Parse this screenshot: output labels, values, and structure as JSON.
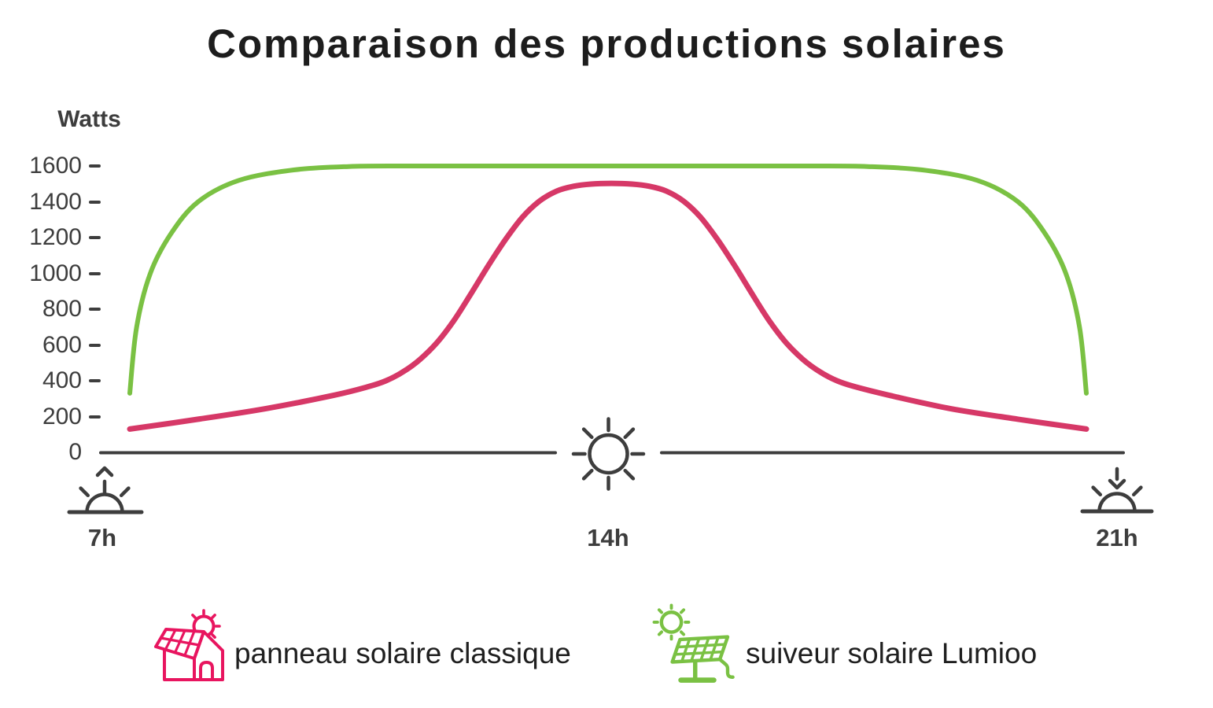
{
  "title": "Comparaison des productions solaires",
  "chart_data": {
    "type": "line",
    "title": "Comparaison des productions solaires",
    "ylabel": "Watts",
    "yticks": [
      1600,
      1400,
      1200,
      1000,
      800,
      600,
      400,
      200,
      0
    ],
    "ylim": [
      0,
      1700
    ],
    "xlim_hours": [
      7,
      21
    ],
    "grid": false,
    "legend_position": "bottom",
    "x_axis_labels": [
      {
        "hour": 7,
        "label": "7h",
        "icon": "sunrise-icon"
      },
      {
        "hour": 14,
        "label": "14h",
        "icon": "sun-icon"
      },
      {
        "hour": 21,
        "label": "21h",
        "icon": "sunset-icon"
      }
    ],
    "series": [
      {
        "name": "panneau solaire classique",
        "color": "#d63867",
        "icon": "house-solar-panel-icon",
        "points": [
          [
            7,
            130
          ],
          [
            8,
            185
          ],
          [
            9,
            245
          ],
          [
            10,
            320
          ],
          [
            10.5,
            368
          ],
          [
            10.75,
            400
          ],
          [
            11,
            450
          ],
          [
            11.25,
            520
          ],
          [
            11.5,
            615
          ],
          [
            11.75,
            740
          ],
          [
            12,
            890
          ],
          [
            12.25,
            1045
          ],
          [
            12.5,
            1190
          ],
          [
            12.75,
            1315
          ],
          [
            13,
            1405
          ],
          [
            13.25,
            1460
          ],
          [
            13.5,
            1487
          ],
          [
            13.75,
            1499
          ],
          [
            14.05,
            1503
          ],
          [
            14.35,
            1499
          ],
          [
            14.6,
            1487
          ],
          [
            14.85,
            1460
          ],
          [
            15.1,
            1405
          ],
          [
            15.35,
            1315
          ],
          [
            15.6,
            1190
          ],
          [
            15.85,
            1045
          ],
          [
            16.1,
            890
          ],
          [
            16.35,
            740
          ],
          [
            16.6,
            615
          ],
          [
            16.85,
            520
          ],
          [
            17.1,
            450
          ],
          [
            17.35,
            400
          ],
          [
            17.6,
            368
          ],
          [
            18.1,
            320
          ],
          [
            19,
            245
          ],
          [
            20,
            185
          ],
          [
            21,
            130
          ]
        ]
      },
      {
        "name": "suiveur solaire Lumioo",
        "color": "#7ac143",
        "icon": "solar-tracker-icon",
        "points": [
          [
            7,
            330
          ],
          [
            7.1,
            700
          ],
          [
            7.3,
            1000
          ],
          [
            7.6,
            1220
          ],
          [
            8,
            1400
          ],
          [
            8.6,
            1520
          ],
          [
            9.4,
            1578
          ],
          [
            10.2,
            1597
          ],
          [
            11,
            1600
          ],
          [
            12,
            1600
          ],
          [
            13,
            1600
          ],
          [
            14,
            1600
          ],
          [
            15,
            1600
          ],
          [
            16,
            1600
          ],
          [
            17,
            1600
          ],
          [
            17.8,
            1597
          ],
          [
            18.6,
            1578
          ],
          [
            19.4,
            1520
          ],
          [
            20,
            1400
          ],
          [
            20.4,
            1220
          ],
          [
            20.7,
            1000
          ],
          [
            20.9,
            700
          ],
          [
            21,
            330
          ]
        ]
      }
    ]
  },
  "legend": {
    "items": [
      {
        "label": "panneau solaire classique",
        "color": "#e8155f"
      },
      {
        "label": "suiveur solaire Lumioo",
        "color": "#7ac143"
      }
    ]
  },
  "colors": {
    "axis": "#3d3d3d",
    "text": "#1e1e1e"
  }
}
